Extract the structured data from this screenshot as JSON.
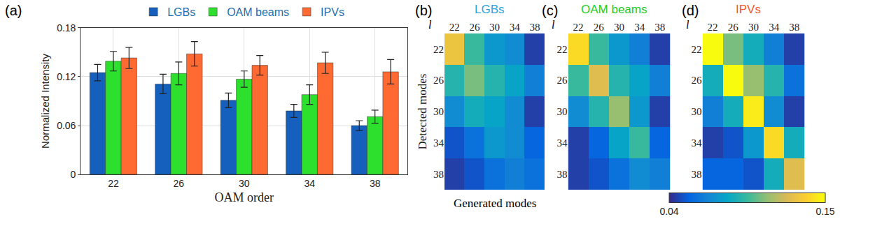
{
  "chart_data": [
    {
      "type": "bar",
      "title": "(a)",
      "x_label": "OAM order",
      "y_label": "Normalized Intensity",
      "categories": [
        "22",
        "26",
        "30",
        "34",
        "38"
      ],
      "series": [
        {
          "name": "LGBs",
          "color": "#1560bd",
          "values": [
            0.125,
            0.111,
            0.091,
            0.078,
            0.06
          ],
          "errors": [
            0.01,
            0.012,
            0.009,
            0.008,
            0.006
          ]
        },
        {
          "name": "OAM beams",
          "color": "#2ee02e",
          "values": [
            0.139,
            0.124,
            0.117,
            0.098,
            0.071
          ],
          "errors": [
            0.012,
            0.014,
            0.01,
            0.012,
            0.008
          ]
        },
        {
          "name": "IPVs",
          "color": "#ff6a33",
          "values": [
            0.143,
            0.148,
            0.134,
            0.137,
            0.126
          ],
          "errors": [
            0.013,
            0.015,
            0.012,
            0.013,
            0.015
          ]
        }
      ],
      "ylim": [
        0,
        0.18
      ],
      "yticks": [
        0,
        0.06,
        0.12,
        0.18
      ],
      "grid": true,
      "legend": "top"
    },
    {
      "type": "heatmap",
      "title": "(b)",
      "subtitle": "LGBs",
      "color": "#29a3e0",
      "x_label": "Generated modes",
      "y_label": "Detected modes",
      "annotations": [
        "l"
      ],
      "x": [
        22,
        26,
        30,
        34,
        38
      ],
      "y": [
        22,
        26,
        30,
        34,
        38
      ],
      "cells": [
        [
          0.13,
          0.095,
          0.075,
          0.07,
          0.045
        ],
        [
          0.09,
          0.105,
          0.09,
          0.08,
          0.065
        ],
        [
          0.07,
          0.085,
          0.08,
          0.07,
          0.045
        ],
        [
          0.05,
          0.06,
          0.075,
          0.07,
          0.055
        ],
        [
          0.045,
          0.05,
          0.06,
          0.065,
          0.06
        ]
      ],
      "zlim": [
        0.04,
        0.15
      ]
    },
    {
      "type": "heatmap",
      "title": "(c)",
      "subtitle": "OAM beams",
      "color": "#22cc22",
      "annotations": [
        "l"
      ],
      "x": [
        22,
        26,
        30,
        34,
        38
      ],
      "y": [
        22,
        26,
        30,
        34,
        38
      ],
      "cells": [
        [
          0.14,
          0.095,
          0.075,
          0.065,
          0.045
        ],
        [
          0.095,
          0.125,
          0.09,
          0.08,
          0.065
        ],
        [
          0.07,
          0.09,
          0.11,
          0.075,
          0.045
        ],
        [
          0.045,
          0.055,
          0.08,
          0.095,
          0.055
        ],
        [
          0.045,
          0.05,
          0.06,
          0.07,
          0.065
        ]
      ],
      "zlim": [
        0.04,
        0.15
      ]
    },
    {
      "type": "heatmap",
      "title": "(d)",
      "subtitle": "IPVs",
      "color": "#f25a2a",
      "annotations": [
        "l"
      ],
      "x": [
        22,
        26,
        30,
        34,
        38
      ],
      "y": [
        22,
        26,
        30,
        34,
        38
      ],
      "cells": [
        [
          0.15,
          0.105,
          0.085,
          0.065,
          0.045
        ],
        [
          0.085,
          0.15,
          0.11,
          0.09,
          0.06
        ],
        [
          0.065,
          0.085,
          0.145,
          0.07,
          0.045
        ],
        [
          0.045,
          0.05,
          0.075,
          0.14,
          0.085
        ],
        [
          0.055,
          0.055,
          0.05,
          0.085,
          0.125
        ]
      ],
      "zlim": [
        0.04,
        0.15
      ],
      "colorbar_ticks": [
        0.15,
        0.04
      ]
    }
  ]
}
